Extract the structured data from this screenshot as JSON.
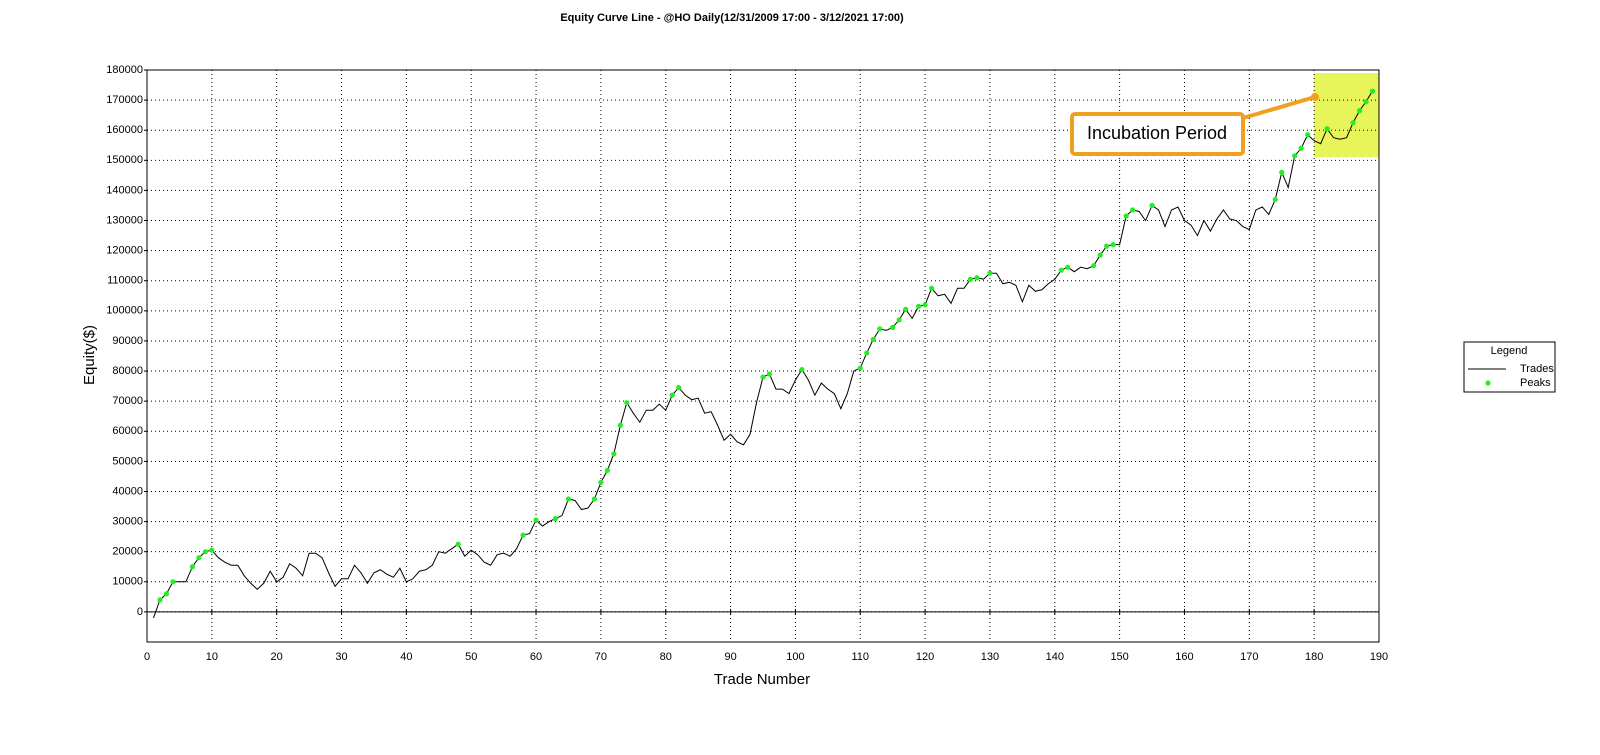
{
  "chart_data": {
    "type": "line",
    "title": "Equity Curve Line - @HO Daily(12/31/2009 17:00 - 3/12/2021 17:00)",
    "xlabel": "Trade Number",
    "ylabel": "Equity($)",
    "x": [
      1,
      2,
      3,
      4,
      5,
      6,
      7,
      8,
      9,
      10,
      11,
      12,
      13,
      14,
      15,
      16,
      17,
      18,
      19,
      20,
      21,
      22,
      23,
      24,
      25,
      26,
      27,
      28,
      29,
      30,
      31,
      32,
      33,
      34,
      35,
      36,
      37,
      38,
      39,
      40,
      41,
      42,
      43,
      44,
      45,
      46,
      47,
      48,
      49,
      50,
      51,
      52,
      53,
      54,
      55,
      56,
      57,
      58,
      59,
      60,
      61,
      62,
      63,
      64,
      65,
      66,
      67,
      68,
      69,
      70,
      71,
      72,
      73,
      74,
      75,
      76,
      77,
      78,
      79,
      80,
      81,
      82,
      83,
      84,
      85,
      86,
      87,
      88,
      89,
      90,
      91,
      92,
      93,
      94,
      95,
      96,
      97,
      98,
      99,
      100,
      101,
      102,
      103,
      104,
      105,
      106,
      107,
      108,
      109,
      110,
      111,
      112,
      113,
      114,
      115,
      116,
      117,
      118,
      119,
      120,
      121,
      122,
      123,
      124,
      125,
      126,
      127,
      128,
      129,
      130,
      131,
      132,
      133,
      134,
      135,
      136,
      137,
      138,
      139,
      140,
      141,
      142,
      143,
      144,
      145,
      146,
      147,
      148,
      149,
      150,
      151,
      152,
      153,
      154,
      155,
      156,
      157,
      158,
      159,
      160,
      161,
      162,
      163,
      164,
      165,
      166,
      167,
      168,
      169,
      170,
      171,
      172,
      173,
      174,
      175,
      176,
      177,
      178,
      179,
      180,
      181,
      182,
      183,
      184,
      185,
      186,
      187,
      188,
      189
    ],
    "series": [
      {
        "name": "Trades",
        "color": "#000000",
        "style": "line",
        "values": [
          -2000,
          4000,
          6000,
          10000,
          10000,
          10000,
          15000,
          18000,
          20000,
          20500,
          18000,
          16500,
          15500,
          15500,
          12000,
          9500,
          7500,
          9500,
          13500,
          10000,
          11500,
          16000,
          14500,
          12000,
          19500,
          19500,
          18000,
          13000,
          8500,
          11000,
          11000,
          15500,
          13000,
          9500,
          13000,
          14000,
          12500,
          11500,
          14500,
          10000,
          11000,
          13500,
          14000,
          15500,
          20000,
          19500,
          21000,
          22500,
          18500,
          20500,
          19000,
          16500,
          15500,
          19000,
          19500,
          18500,
          21000,
          25500,
          26000,
          30500,
          28500,
          30000,
          31000,
          32000,
          37500,
          37000,
          34000,
          34500,
          37500,
          43000,
          47000,
          52500,
          62000,
          69500,
          66000,
          63000,
          67000,
          67000,
          69000,
          67000,
          72000,
          74500,
          72000,
          70500,
          71000,
          66000,
          66500,
          62000,
          57000,
          59000,
          56500,
          55500,
          59000,
          69500,
          78000,
          79000,
          74000,
          74000,
          72500,
          77000,
          80500,
          77000,
          72000,
          76000,
          74000,
          72500,
          67500,
          72500,
          80000,
          81000,
          86000,
          90500,
          94000,
          93500,
          94500,
          97000,
          100500,
          97500,
          101500,
          102000,
          107500,
          105000,
          105500,
          102500,
          107500,
          107500,
          110500,
          111000,
          110500,
          112500,
          112500,
          109000,
          109500,
          108500,
          103000,
          108500,
          106500,
          107000,
          109000,
          110500,
          113500,
          114500,
          113000,
          114500,
          114000,
          115000,
          118500,
          121500,
          122000,
          122000,
          131500,
          133500,
          133000,
          130000,
          135000,
          133500,
          128000,
          133500,
          134500,
          130000,
          128500,
          125000,
          130000,
          126500,
          130500,
          133500,
          130500,
          130000,
          128000,
          127000,
          133500,
          134500,
          132000,
          137000,
          146000,
          141000,
          151500,
          154000,
          158500,
          156500,
          155500,
          160500,
          157500,
          157000,
          157500,
          162500,
          166500,
          169500,
          173000
        ]
      },
      {
        "name": "Peaks",
        "color": "#22ee22",
        "style": "points",
        "values": [
          null,
          4000,
          6000,
          10000,
          null,
          null,
          15000,
          18000,
          20000,
          20500,
          null,
          null,
          null,
          null,
          null,
          null,
          null,
          null,
          null,
          null,
          null,
          null,
          null,
          null,
          null,
          null,
          null,
          null,
          null,
          null,
          null,
          null,
          null,
          null,
          null,
          null,
          null,
          null,
          null,
          null,
          null,
          null,
          null,
          null,
          null,
          null,
          null,
          22500,
          null,
          null,
          null,
          null,
          null,
          null,
          null,
          null,
          null,
          25500,
          null,
          30500,
          null,
          null,
          31000,
          null,
          37500,
          null,
          null,
          null,
          37500,
          43000,
          47000,
          52500,
          62000,
          69500,
          null,
          null,
          null,
          null,
          null,
          null,
          72000,
          74500,
          null,
          null,
          null,
          null,
          null,
          null,
          null,
          null,
          null,
          null,
          null,
          null,
          78000,
          79000,
          null,
          null,
          null,
          null,
          80500,
          null,
          null,
          null,
          null,
          null,
          null,
          null,
          null,
          81000,
          86000,
          90500,
          94000,
          null,
          94500,
          97000,
          100500,
          null,
          101500,
          102000,
          107500,
          null,
          null,
          null,
          null,
          null,
          110500,
          111000,
          null,
          112500,
          null,
          null,
          null,
          null,
          null,
          null,
          null,
          null,
          null,
          null,
          113500,
          114500,
          null,
          null,
          null,
          115000,
          118500,
          121500,
          122000,
          null,
          131500,
          133500,
          null,
          null,
          135000,
          null,
          null,
          null,
          null,
          null,
          null,
          null,
          null,
          null,
          null,
          null,
          null,
          null,
          null,
          null,
          null,
          null,
          null,
          137000,
          146000,
          null,
          151500,
          154000,
          158500,
          null,
          null,
          160500,
          null,
          null,
          null,
          162500,
          166500,
          169500,
          173000
        ]
      }
    ],
    "xlim": [
      0,
      190
    ],
    "xticks": [
      0,
      10,
      20,
      30,
      40,
      50,
      60,
      70,
      80,
      90,
      100,
      110,
      120,
      130,
      140,
      150,
      160,
      170,
      180,
      190
    ],
    "ylim": [
      -10000,
      180000
    ],
    "yticks": [
      0,
      10000,
      20000,
      30000,
      40000,
      50000,
      60000,
      70000,
      80000,
      90000,
      100000,
      110000,
      120000,
      130000,
      140000,
      150000,
      160000,
      170000,
      180000
    ],
    "grid": true,
    "legend": {
      "title": "Legend",
      "position": "right"
    },
    "highlight": {
      "xlim": [
        180,
        190
      ],
      "ylim": [
        151000,
        179000
      ],
      "color": "#e8f55a"
    },
    "annotation": "Incubation Period"
  }
}
